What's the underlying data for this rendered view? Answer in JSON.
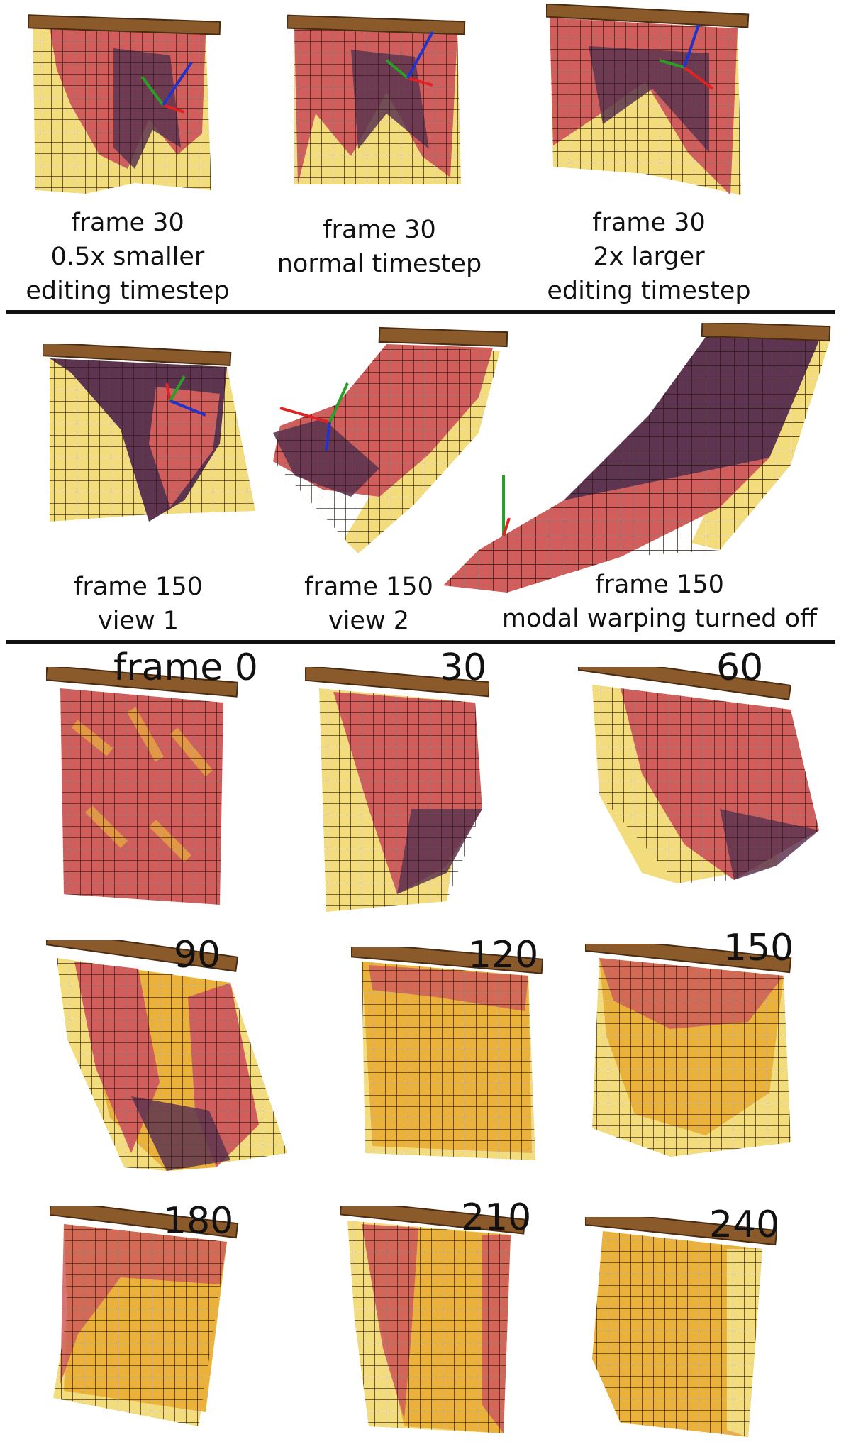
{
  "row1": [
    {
      "lines": [
        "frame 30",
        "0.5x smaller",
        "editing timestep"
      ]
    },
    {
      "lines": [
        "frame 30",
        "normal timestep"
      ]
    },
    {
      "lines": [
        "frame 30",
        "2x larger",
        "editing timestep"
      ]
    }
  ],
  "row2": [
    {
      "lines": [
        "frame 150",
        "view 1"
      ]
    },
    {
      "lines": [
        "frame 150",
        "view 2"
      ]
    },
    {
      "lines": [
        "frame 150",
        "modal warping turned off"
      ]
    }
  ],
  "sequence": [
    "frame 0",
    "30",
    "60",
    "90",
    "120",
    "150",
    "180",
    "210",
    "240"
  ],
  "colors": {
    "rod": "#8a5a2b",
    "rod_dark": "#4a2c12",
    "fabric_front": "#cf5e5c",
    "fabric_shadow": "#5e3550",
    "fabric_back": "#f2dc7c",
    "fabric_gold": "#eab13b",
    "grid": "#2a1a14",
    "handle_red": "#e22222",
    "handle_green": "#28a028",
    "handle_blue": "#2233cc"
  }
}
